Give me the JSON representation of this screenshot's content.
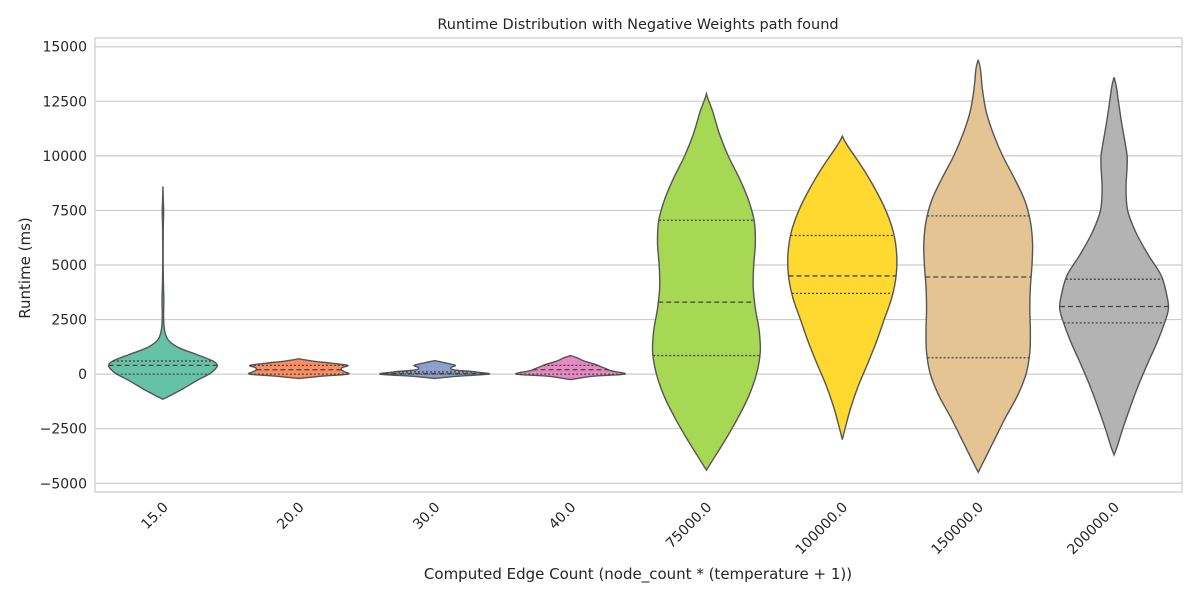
{
  "chart_data": {
    "type": "violin",
    "title": "Runtime Distribution with Negative Weights path found",
    "xlabel": "Computed Edge Count (node_count * (temperature + 1))",
    "ylabel": "Runtime (ms)",
    "ylim": [
      -5400,
      15400
    ],
    "yticks": [
      -5000,
      -2500,
      0,
      2500,
      5000,
      7500,
      10000,
      12500,
      15000
    ],
    "ytick_labels": [
      "−5000",
      "−2500",
      "0",
      "2500",
      "5000",
      "7500",
      "10000",
      "12500",
      "15000"
    ],
    "grid": true,
    "categories": [
      "15.0",
      "20.0",
      "30.0",
      "40.0",
      "75000.0",
      "100000.0",
      "150000.0",
      "200000.0"
    ],
    "colors": [
      "#66c2a5",
      "#fc8d62",
      "#8da0cb",
      "#e78ac3",
      "#a6d854",
      "#ffd92f",
      "#e5c494",
      "#b3b3b3"
    ],
    "violins": [
      {
        "category": "15.0",
        "q1": 0,
        "median": 400,
        "q3": 600,
        "profile": [
          [
            -1150,
            0.0
          ],
          [
            -1000,
            0.12
          ],
          [
            -700,
            0.35
          ],
          [
            -300,
            0.62
          ],
          [
            0,
            0.85
          ],
          [
            200,
            0.95
          ],
          [
            400,
            1.0
          ],
          [
            600,
            0.92
          ],
          [
            900,
            0.62
          ],
          [
            1200,
            0.3
          ],
          [
            1500,
            0.12
          ],
          [
            1800,
            0.05
          ],
          [
            2200,
            0.02
          ],
          [
            2700,
            0.012
          ],
          [
            3200,
            0.016
          ],
          [
            3500,
            0.016
          ],
          [
            4000,
            0.01
          ],
          [
            5000,
            0.004
          ],
          [
            6000,
            0.004
          ],
          [
            6700,
            0.006
          ],
          [
            7300,
            0.012
          ],
          [
            7600,
            0.012
          ],
          [
            8000,
            0.006
          ],
          [
            8600,
            0.0
          ]
        ]
      },
      {
        "category": "20.0",
        "q1": 0,
        "median": 200,
        "q3": 400,
        "profile": [
          [
            -200,
            0.0
          ],
          [
            -100,
            0.4
          ],
          [
            0,
            0.9
          ],
          [
            100,
            0.85
          ],
          [
            200,
            0.78
          ],
          [
            300,
            0.8
          ],
          [
            400,
            0.9
          ],
          [
            500,
            0.6
          ],
          [
            600,
            0.25
          ],
          [
            700,
            0.0
          ]
        ]
      },
      {
        "category": "30.0",
        "q1": 0,
        "median": 20,
        "q3": 100,
        "profile": [
          [
            -200,
            0.0
          ],
          [
            -100,
            0.4
          ],
          [
            0,
            1.0
          ],
          [
            100,
            0.75
          ],
          [
            200,
            0.35
          ],
          [
            300,
            0.3
          ],
          [
            400,
            0.38
          ],
          [
            500,
            0.22
          ],
          [
            620,
            0.0
          ]
        ]
      },
      {
        "category": "40.0",
        "q1": 0,
        "median": 200,
        "q3": 400,
        "profile": [
          [
            -250,
            0.0
          ],
          [
            -100,
            0.4
          ],
          [
            0,
            1.0
          ],
          [
            150,
            0.75
          ],
          [
            250,
            0.65
          ],
          [
            350,
            0.55
          ],
          [
            450,
            0.45
          ],
          [
            600,
            0.25
          ],
          [
            750,
            0.12
          ],
          [
            850,
            0.0
          ]
        ]
      },
      {
        "category": "75000.0",
        "q1": 850,
        "median": 3300,
        "q3": 7050,
        "profile": [
          [
            -4400,
            0.0
          ],
          [
            -4000,
            0.1
          ],
          [
            -3000,
            0.35
          ],
          [
            -2000,
            0.58
          ],
          [
            -1000,
            0.78
          ],
          [
            0,
            0.92
          ],
          [
            1000,
            0.99
          ],
          [
            2000,
            0.97
          ],
          [
            3000,
            0.9
          ],
          [
            4000,
            0.86
          ],
          [
            5000,
            0.87
          ],
          [
            6000,
            0.9
          ],
          [
            7000,
            0.88
          ],
          [
            8000,
            0.77
          ],
          [
            9000,
            0.6
          ],
          [
            10000,
            0.4
          ],
          [
            11000,
            0.24
          ],
          [
            12000,
            0.12
          ],
          [
            12600,
            0.03
          ],
          [
            12850,
            0.0
          ]
        ]
      },
      {
        "category": "100000.0",
        "q1": 3700,
        "median": 4500,
        "q3": 6350,
        "profile": [
          [
            -3000,
            0.0
          ],
          [
            -2500,
            0.05
          ],
          [
            -1500,
            0.16
          ],
          [
            -500,
            0.3
          ],
          [
            500,
            0.47
          ],
          [
            1500,
            0.63
          ],
          [
            2500,
            0.77
          ],
          [
            3500,
            0.91
          ],
          [
            4500,
            0.99
          ],
          [
            5500,
            1.0
          ],
          [
            6500,
            0.94
          ],
          [
            7500,
            0.8
          ],
          [
            8500,
            0.6
          ],
          [
            9500,
            0.36
          ],
          [
            10300,
            0.14
          ],
          [
            10700,
            0.04
          ],
          [
            10900,
            0.0
          ]
        ]
      },
      {
        "category": "150000.0",
        "q1": 750,
        "median": 4450,
        "q3": 7250,
        "profile": [
          [
            -4500,
            0.0
          ],
          [
            -4000,
            0.1
          ],
          [
            -3000,
            0.3
          ],
          [
            -2000,
            0.5
          ],
          [
            -1000,
            0.72
          ],
          [
            0,
            0.88
          ],
          [
            1000,
            0.95
          ],
          [
            2000,
            0.96
          ],
          [
            3000,
            0.95
          ],
          [
            4000,
            0.96
          ],
          [
            5000,
            0.99
          ],
          [
            6000,
            1.0
          ],
          [
            7000,
            0.96
          ],
          [
            8000,
            0.85
          ],
          [
            9000,
            0.66
          ],
          [
            10000,
            0.45
          ],
          [
            11000,
            0.28
          ],
          [
            12000,
            0.15
          ],
          [
            13000,
            0.08
          ],
          [
            14000,
            0.04
          ],
          [
            14400,
            0.0
          ]
        ]
      },
      {
        "category": "200000.0",
        "q1": 2350,
        "median": 3100,
        "q3": 4350,
        "profile": [
          [
            -3700,
            0.0
          ],
          [
            -3300,
            0.06
          ],
          [
            -2500,
            0.16
          ],
          [
            -1500,
            0.3
          ],
          [
            -500,
            0.45
          ],
          [
            500,
            0.62
          ],
          [
            1500,
            0.8
          ],
          [
            2500,
            0.95
          ],
          [
            3000,
            1.0
          ],
          [
            3500,
            0.98
          ],
          [
            4500,
            0.87
          ],
          [
            5500,
            0.62
          ],
          [
            6500,
            0.4
          ],
          [
            7500,
            0.25
          ],
          [
            8500,
            0.22
          ],
          [
            9500,
            0.24
          ],
          [
            10000,
            0.24
          ],
          [
            10500,
            0.21
          ],
          [
            11500,
            0.14
          ],
          [
            12500,
            0.08
          ],
          [
            13200,
            0.04
          ],
          [
            13600,
            0.0
          ]
        ]
      }
    ]
  }
}
